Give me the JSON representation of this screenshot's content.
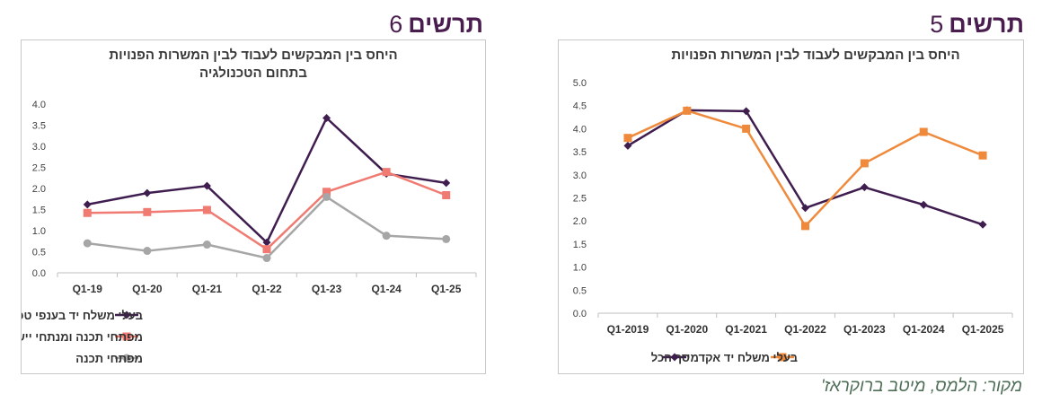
{
  "figures": [
    {
      "heading_word": "תרשים",
      "heading_number": "6",
      "chart_data": {
        "type": "line",
        "title_lines": [
          "היחס בין המבקשים לעבוד לבין המשרות הפנויות",
          "בתחום הטכנולגיה"
        ],
        "categories": [
          "Q1-19",
          "Q1-20",
          "Q1-21",
          "Q1-22",
          "Q1-23",
          "Q1-24",
          "Q1-25"
        ],
        "ylim": [
          0,
          4
        ],
        "ytick_labels": [
          "0.0",
          "0.5",
          "1.0",
          "1.5",
          "2.0",
          "2.5",
          "3.0",
          "3.5",
          "4.0"
        ],
        "grid": false,
        "legend_position": "bottom",
        "series": [
          {
            "name": "בעלי משלח יד בענפי טכנולוגיות המידע (ICT)",
            "color": "#3f1d4f",
            "marker": "diamond",
            "values": [
              1.62,
              1.89,
              2.06,
              0.72,
              3.67,
              2.35,
              2.13
            ]
          },
          {
            "name": "מפתחי תכנה ומנתחי יישומים",
            "color": "#f07b72",
            "marker": "square",
            "values": [
              1.42,
              1.44,
              1.49,
              0.56,
              1.92,
              2.39,
              1.84
            ]
          },
          {
            "name": "מפתחי תכנה",
            "color": "#a6a6a6",
            "marker": "circle",
            "values": [
              0.7,
              0.52,
              0.67,
              0.35,
              1.8,
              0.88,
              0.8
            ]
          }
        ]
      }
    },
    {
      "heading_word": "תרשים",
      "heading_number": "5",
      "chart_data": {
        "type": "line",
        "title_lines": [
          "היחס בין המבקשים לעבוד לבין המשרות הפנויות"
        ],
        "categories": [
          "Q1-2019",
          "Q1-2020",
          "Q1-2021",
          "Q1-2022",
          "Q1-2023",
          "Q1-2024",
          "Q1-2025"
        ],
        "ylim": [
          0,
          5
        ],
        "ytick_labels": [
          "0.0",
          "0.5",
          "1.0",
          "1.5",
          "2.0",
          "2.5",
          "3.0",
          "3.5",
          "4.0",
          "4.5",
          "5.0"
        ],
        "grid": false,
        "legend_position": "bottom",
        "series": [
          {
            "name": "סך הכל",
            "color": "#3f1d4f",
            "marker": "diamond",
            "values": [
              3.63,
              4.4,
              4.38,
              2.28,
              2.73,
              2.35,
              1.92
            ]
          },
          {
            "name": "בעלי משלח יד אקדמי",
            "color": "#ef8a3c",
            "marker": "square",
            "values": [
              3.8,
              4.39,
              4.0,
              1.89,
              3.25,
              3.93,
              3.42
            ]
          }
        ]
      }
    }
  ],
  "source_note": "מקור: הלמס, מיטב ברוקראז'"
}
